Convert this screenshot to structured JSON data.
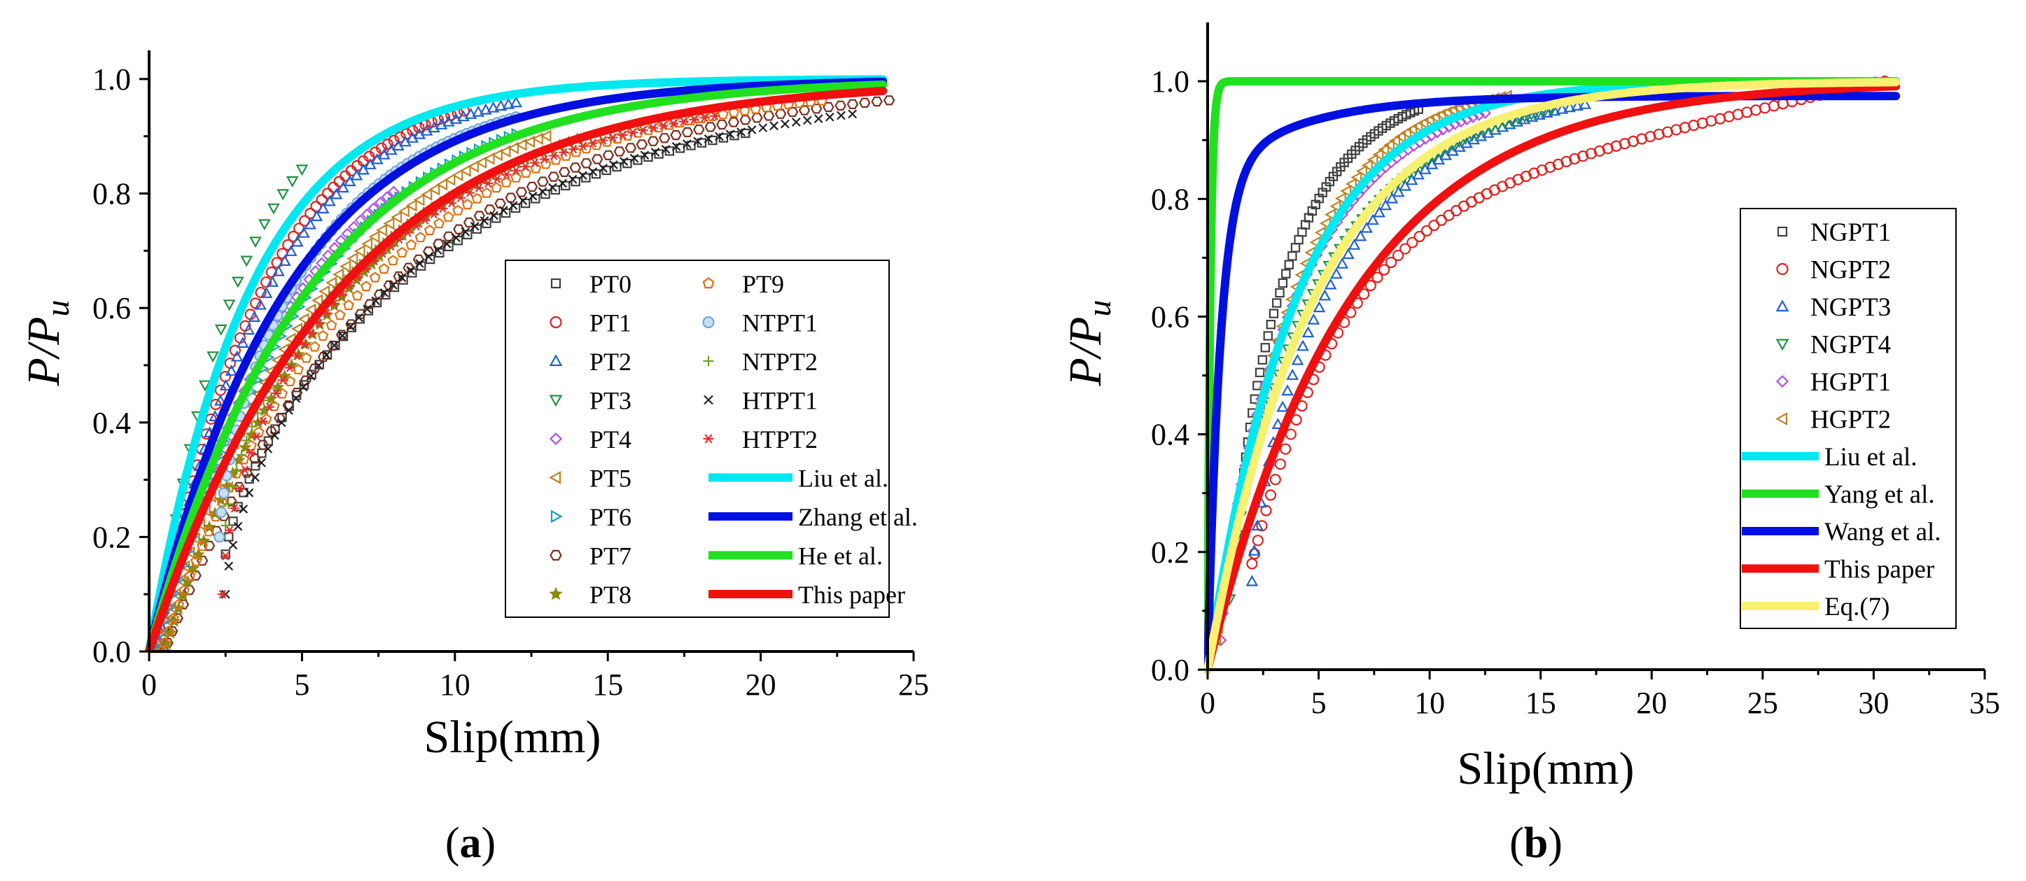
{
  "chart_data": [
    {
      "type": "scatter",
      "panel": "(a)",
      "panel_letter": "a",
      "xlabel": "Slip(mm)",
      "ylabel": "P/Pu",
      "ylabel_main": "P/P",
      "ylabel_sub": "u",
      "xlim": [
        0,
        25
      ],
      "ylim": [
        0,
        1.05
      ],
      "xticks": [
        "0",
        "5",
        "10",
        "15",
        "20",
        "25"
      ],
      "yticks": [
        "0.0",
        "0.2",
        "0.4",
        "0.6",
        "0.8",
        "1.0"
      ],
      "legend_position": "center-right",
      "series": [
        {
          "name": "PT0",
          "kind": "scatter",
          "marker": "square",
          "color": "#404040",
          "x_start": 2.5,
          "x_end": 19.5,
          "a": 0.17,
          "b": 9.0,
          "c": 0.26,
          "n": 60
        },
        {
          "name": "PT1",
          "kind": "scatter",
          "marker": "circle",
          "color": "#e02020",
          "x_start": 0.2,
          "x_end": 10.3,
          "a": 0,
          "b": 3.5,
          "c": 0,
          "n": 60
        },
        {
          "name": "PT2",
          "kind": "scatter",
          "marker": "triangle-up",
          "color": "#2060d0",
          "x_start": 0.2,
          "x_end": 12.0,
          "a": 0,
          "b": 3.7,
          "c": 0,
          "n": 60
        },
        {
          "name": "PT3",
          "kind": "scatter",
          "marker": "triangle-down",
          "color": "#209040",
          "x_start": 0.2,
          "x_end": 5.0,
          "a": 0,
          "b": 2.6,
          "c": 0,
          "n": 20
        },
        {
          "name": "PT4",
          "kind": "scatter",
          "marker": "diamond",
          "color": "#b050e0",
          "x_start": 0.2,
          "x_end": 8.0,
          "a": 0,
          "b": 4.8,
          "c": 0,
          "n": 45
        },
        {
          "name": "PT5",
          "kind": "scatter",
          "marker": "triangle-left",
          "color": "#c08020",
          "x_start": 0.3,
          "x_end": 13.0,
          "a": 0,
          "b": 5.5,
          "c": 0,
          "n": 60
        },
        {
          "name": "PT6",
          "kind": "scatter",
          "marker": "triangle-right",
          "color": "#10a0c0",
          "x_start": 0.3,
          "x_end": 12.0,
          "a": 0,
          "b": 5.0,
          "c": 0,
          "n": 60
        },
        {
          "name": "PT7",
          "kind": "scatter",
          "marker": "hexagon",
          "color": "#7a3020",
          "x_start": 0.5,
          "x_end": 24.2,
          "a": 0,
          "b": 7.2,
          "c": 0,
          "n": 75
        },
        {
          "name": "PT8",
          "kind": "scatter",
          "marker": "star",
          "color": "#8a8a10",
          "x_start": 0.5,
          "x_end": 14.0,
          "a": 0,
          "b": 6.0,
          "c": 0,
          "n": 60
        },
        {
          "name": "PT9",
          "kind": "scatter",
          "marker": "pentagon",
          "color": "#e07010",
          "x_start": 0.4,
          "x_end": 22.0,
          "a": 0,
          "b": 6.6,
          "c": 0,
          "n": 75
        },
        {
          "name": "NTPT1",
          "kind": "scatter",
          "marker": "circle-filled",
          "color": "#70a8e0",
          "x_start": 2.3,
          "x_end": 12.0,
          "a": 0.2,
          "b": 4.6,
          "c": 0.33,
          "n": 60
        },
        {
          "name": "NTPT2",
          "kind": "scatter",
          "marker": "plus",
          "color": "#70a020",
          "x_start": 2.5,
          "x_end": 16.0,
          "a": 0.22,
          "b": 7.0,
          "c": 0.3,
          "n": 55
        },
        {
          "name": "HTPT1",
          "kind": "scatter",
          "marker": "cross",
          "color": "#202020",
          "x_start": 2.5,
          "x_end": 23.0,
          "a": 0.1,
          "b": 9.0,
          "c": 0.35,
          "n": 70
        },
        {
          "name": "HTPT2",
          "kind": "scatter",
          "marker": "asterisk",
          "color": "#e03030",
          "x_start": 2.4,
          "x_end": 18.5,
          "a": 0.1,
          "b": 7.5,
          "c": 0.4,
          "n": 60
        },
        {
          "name": "Liu et al.",
          "kind": "line",
          "color": "#00e8f0",
          "model": "exp",
          "k": 3.3,
          "x_max": 24
        },
        {
          "name": "Zhang et al.",
          "kind": "line",
          "color": "#0010e0",
          "model": "exp",
          "k": 4.5,
          "x_max": 24
        },
        {
          "name": "He et al.",
          "kind": "line",
          "color": "#20e020",
          "model": "exp",
          "k": 5.2,
          "x_max": 24
        },
        {
          "name": "This paper",
          "kind": "line",
          "color": "#f01010",
          "model": "exp",
          "k": 6.2,
          "x_max": 24
        }
      ]
    },
    {
      "type": "scatter",
      "panel": "(b)",
      "panel_letter": "b",
      "xlabel": "Slip(mm)",
      "ylabel": "P/Pu",
      "ylabel_main": "P/P",
      "ylabel_sub": "u",
      "xlim": [
        0,
        35
      ],
      "ylim": [
        0,
        1.1
      ],
      "xticks": [
        "0",
        "5",
        "10",
        "15",
        "20",
        "25",
        "30",
        "35"
      ],
      "yticks": [
        "0.0",
        "0.2",
        "0.4",
        "0.6",
        "0.8",
        "1.0"
      ],
      "legend_position": "right",
      "series": [
        {
          "name": "NGPT1",
          "kind": "scatter",
          "marker": "square",
          "color": "#404040",
          "x_start": 1.5,
          "x_end": 9.5,
          "a": 0.28,
          "b": 3.2,
          "c": 0.2,
          "n": 55
        },
        {
          "name": "NGPT2",
          "kind": "scatter",
          "marker": "circle",
          "color": "#e02020",
          "x_start": 2.0,
          "x_end": 30.5,
          "a": 0.18,
          "b": 9.0,
          "c": 0.0,
          "n": 85,
          "linear_tail": true
        },
        {
          "name": "NGPT3",
          "kind": "scatter",
          "marker": "triangle-up",
          "color": "#2060d0",
          "x_start": 2.0,
          "x_end": 17.0,
          "a": 0.15,
          "b": 5.5,
          "c": 0.3,
          "n": 55
        },
        {
          "name": "NGPT4",
          "kind": "scatter",
          "marker": "triangle-down",
          "color": "#209040",
          "x_start": 1.0,
          "x_end": 15.5,
          "a": 0.12,
          "b": 5.5,
          "c": 0.25,
          "n": 60
        },
        {
          "name": "HGPT1",
          "kind": "scatter",
          "marker": "diamond",
          "color": "#b050e0",
          "x_start": 0.6,
          "x_end": 12.5,
          "a": 0.05,
          "b": 4.6,
          "c": 0.25,
          "n": 55
        },
        {
          "name": "HGPT2",
          "kind": "scatter",
          "marker": "triangle-left",
          "color": "#c08020",
          "x_start": 0.4,
          "x_end": 13.5,
          "a": 0.05,
          "b": 3.6,
          "c": 0.0,
          "n": 60
        },
        {
          "name": "Liu et al.",
          "kind": "line",
          "color": "#00e8f0",
          "model": "exp",
          "k": 4.0,
          "x_max": 31
        },
        {
          "name": "Yang et al.",
          "kind": "line",
          "color": "#20e020",
          "model": "exp",
          "k": 0.12,
          "x_max": 31
        },
        {
          "name": "Wang et al.",
          "kind": "line",
          "color": "#0010e0",
          "model": "wang",
          "x_max": 31
        },
        {
          "name": "This paper",
          "kind": "line",
          "color": "#f01010",
          "model": "exp",
          "k": 6.5,
          "x_max": 31
        },
        {
          "name": "Eq.(7)",
          "kind": "line",
          "color": "#f8f070",
          "model": "exp",
          "k": 4.8,
          "x_max": 31
        }
      ]
    }
  ]
}
